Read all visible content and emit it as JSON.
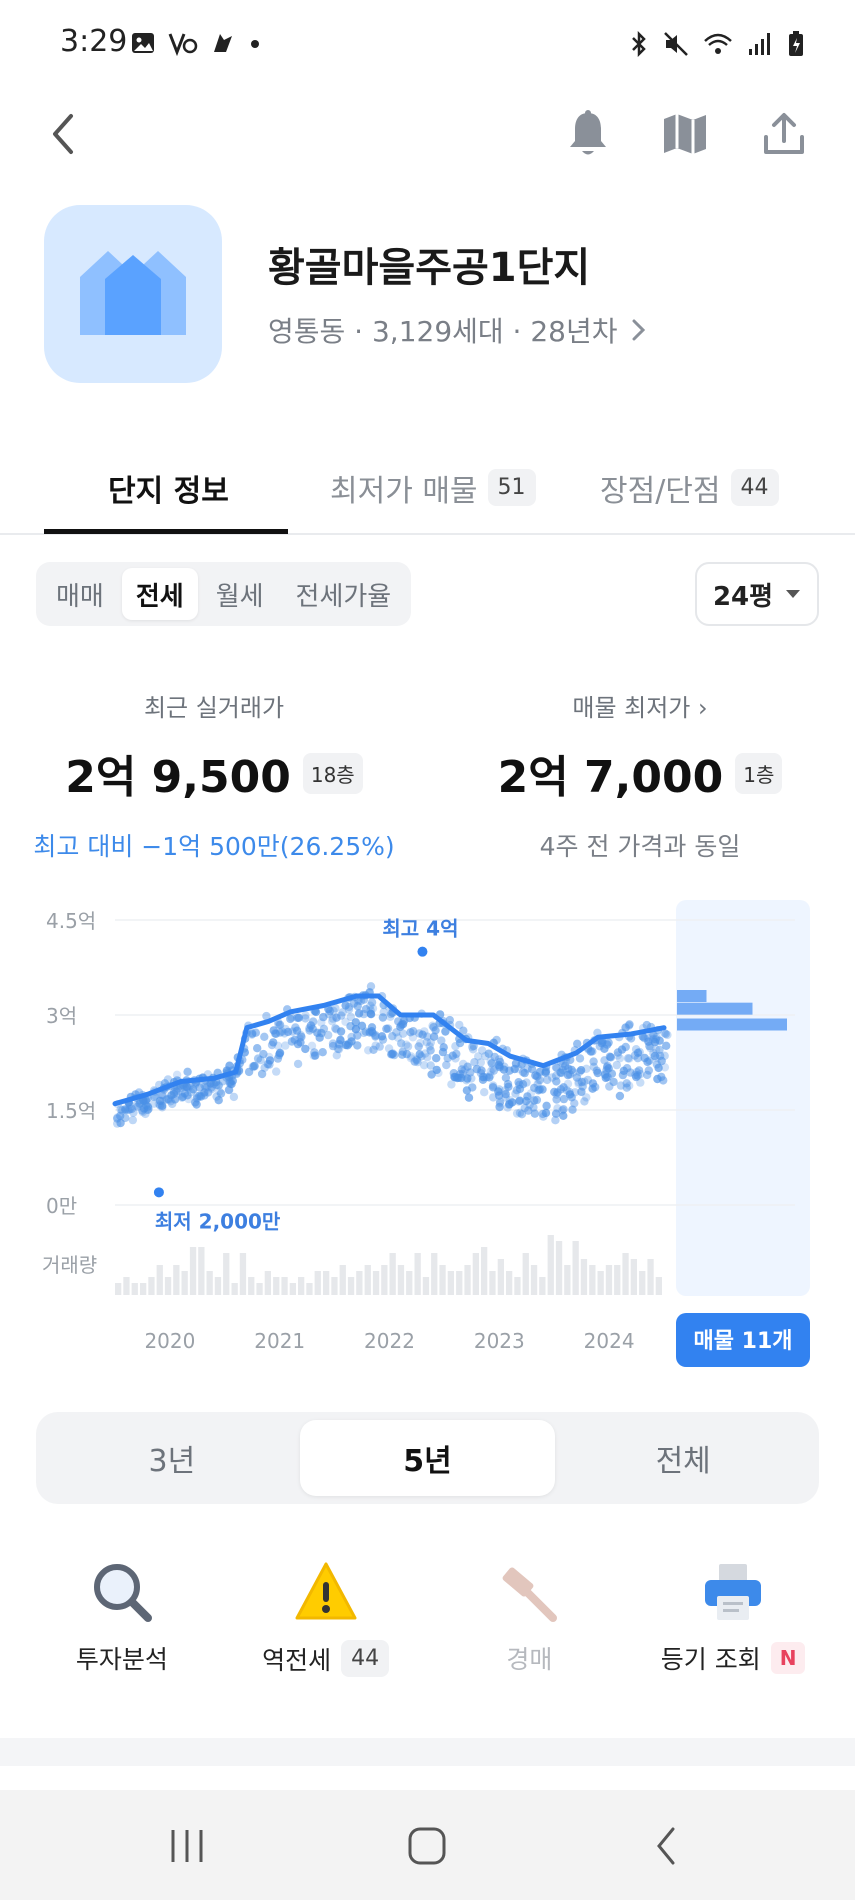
{
  "status_bar": {
    "time": "3:29"
  },
  "app_bar": {
    "icons": [
      "back-icon",
      "bell-icon",
      "map-icon",
      "share-icon"
    ]
  },
  "complex": {
    "name": "황골마을주공1단지",
    "meta": "영통동 · 3,129세대 · 28년차"
  },
  "tabs": [
    {
      "label": "단지 정보",
      "count": ""
    },
    {
      "label": "최저가 매물",
      "count": "51"
    },
    {
      "label": "장점/단점",
      "count": "44"
    }
  ],
  "deal_types": [
    "매매",
    "전세",
    "월세",
    "전세가율"
  ],
  "deal_type_selected": "전세",
  "pyeong": "24평",
  "recent_trade": {
    "label": "최근 실거래가",
    "price": "2억 9,500",
    "floor": "18층",
    "diff": "최고 대비 −1억 500만(26.25%)"
  },
  "lowest_listing": {
    "label": "매물 최저가",
    "price": "2억 7,000",
    "floor": "1층",
    "note": "4주 전 가격과 동일"
  },
  "chart_data": {
    "type": "scatter",
    "y_ticks": [
      "4.5억",
      "3억",
      "1.5억",
      "0만"
    ],
    "ylim": [
      0,
      4.5
    ],
    "volume_label": "거래량",
    "x_ticks": [
      "2020",
      "2021",
      "2022",
      "2023",
      "2024"
    ],
    "max_label": "최고 4억",
    "min_label": "최저 2,000만",
    "listing_button": "매물 11개",
    "trend_line": {
      "x": [
        2019.5,
        2019.8,
        2020.1,
        2020.4,
        2020.6,
        2020.7,
        2020.9,
        2021.1,
        2021.4,
        2021.7,
        2021.9,
        2022.1,
        2022.4,
        2022.7,
        2022.9,
        2023.1,
        2023.4,
        2023.7,
        2023.9,
        2024.2,
        2024.5
      ],
      "y": [
        1.6,
        1.75,
        1.95,
        2.0,
        2.1,
        2.8,
        2.9,
        3.05,
        3.15,
        3.3,
        3.3,
        3.0,
        3.0,
        2.6,
        2.55,
        2.35,
        2.2,
        2.4,
        2.65,
        2.7,
        2.8
      ]
    },
    "max_point": {
      "x": 2022.3,
      "y": 4.0
    },
    "min_point": {
      "x": 2019.9,
      "y": 0.2
    },
    "listing_distribution": [
      {
        "y": 3.3,
        "value": 1
      },
      {
        "y": 3.1,
        "value": 5
      },
      {
        "y": 2.85,
        "value": 8
      }
    ],
    "volume": [
      2,
      3,
      2,
      2,
      3,
      5,
      3,
      5,
      4,
      8,
      8,
      4,
      3,
      7,
      2,
      7,
      3,
      2,
      4,
      3,
      3,
      2,
      3,
      2,
      4,
      4,
      3,
      5,
      3,
      4,
      5,
      4,
      5,
      7,
      5,
      4,
      7,
      3,
      7,
      5,
      4,
      4,
      5,
      7,
      8,
      4,
      6,
      4,
      3,
      7,
      5,
      3,
      10,
      9,
      5,
      9,
      6,
      5,
      4,
      5,
      5,
      7,
      6,
      4,
      6,
      3
    ]
  },
  "period_options": [
    "3년",
    "5년",
    "전체"
  ],
  "period_selected": "5년",
  "quick_menu": [
    {
      "label": "투자분석",
      "icon": "magnifier-icon",
      "badge": ""
    },
    {
      "label": "역전세",
      "icon": "warning-icon",
      "badge": "44"
    },
    {
      "label": "경매",
      "icon": "gavel-icon",
      "badge": ""
    },
    {
      "label": "등기 조회",
      "icon": "printer-icon",
      "badge": "N"
    }
  ],
  "colors": {
    "accent": "#3282f0",
    "chart_dot": "#4a90e6",
    "thumb_bg": "#d7e9ff"
  }
}
